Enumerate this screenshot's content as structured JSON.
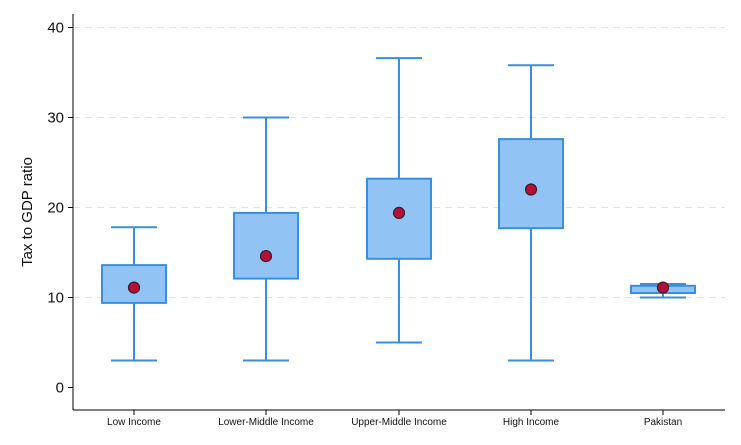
{
  "chart_data": {
    "type": "box",
    "ylabel": "Tax to GDP ratio",
    "ylim": [
      -2.5,
      41.5
    ],
    "yticks": [
      0,
      10,
      20,
      30,
      40
    ],
    "grid": true,
    "categories": [
      "Low Income",
      "Lower-Middle Income",
      "Upper-Middle Income",
      "High Income",
      "Pakistan"
    ],
    "boxes": [
      {
        "min": 3.0,
        "q1": 9.4,
        "q3": 13.6,
        "max": 17.8,
        "mean": 11.1
      },
      {
        "min": 3.0,
        "q1": 12.1,
        "q3": 19.4,
        "max": 30.0,
        "mean": 14.6
      },
      {
        "min": 5.0,
        "q1": 14.3,
        "q3": 23.2,
        "max": 36.6,
        "mean": 19.4
      },
      {
        "min": 3.0,
        "q1": 17.7,
        "q3": 27.6,
        "max": 35.8,
        "mean": 22.0
      },
      {
        "min": 10.0,
        "q1": 10.5,
        "q3": 11.3,
        "max": 11.5,
        "mean": 11.1
      }
    ],
    "colors": {
      "box_fill": "#92c3f5",
      "box_stroke": "#3a8fdd",
      "whisker": "#3a8fdd",
      "mean_fill": "#b5103c",
      "mean_stroke": "#3b1a24",
      "grid": "#e3e3e3",
      "axis": "#000000"
    }
  }
}
